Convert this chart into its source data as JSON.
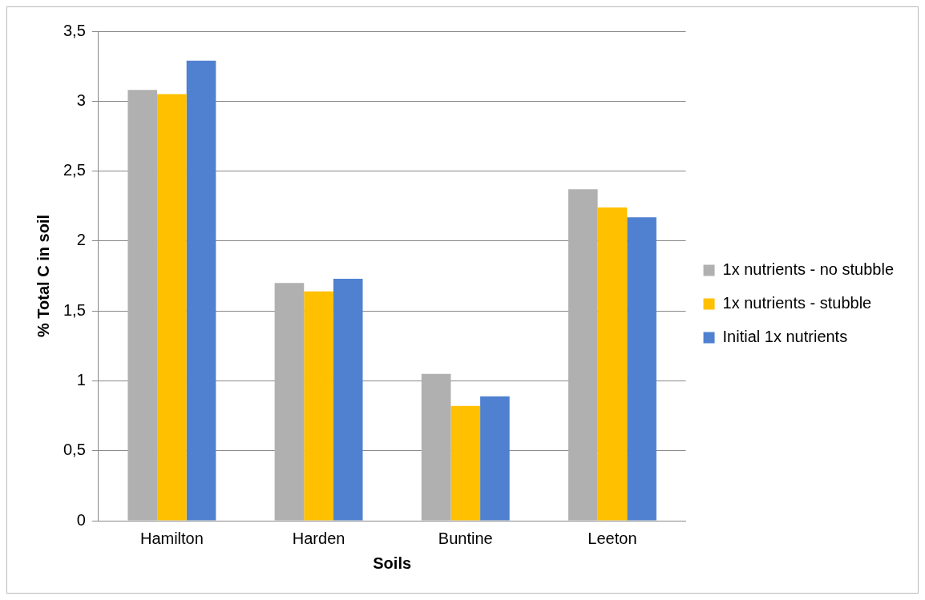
{
  "chart_data": {
    "type": "bar",
    "xlabel": "Soils",
    "ylabel": "% Total C in soil",
    "categories": [
      "Hamilton",
      "Harden",
      "Buntine",
      "Leeton"
    ],
    "series": [
      {
        "name": "1x nutrients - no stubble",
        "color": "#b0b0b0",
        "values": [
          3.08,
          1.7,
          1.05,
          2.37
        ]
      },
      {
        "name": "1x nutrients - stubble",
        "color": "#ffc000",
        "values": [
          3.05,
          1.64,
          0.82,
          2.24
        ]
      },
      {
        "name": "Initial 1x nutrients",
        "color": "#4f81d0",
        "values": [
          3.29,
          1.73,
          0.89,
          2.17
        ]
      }
    ],
    "ylim": [
      0,
      3.5
    ],
    "yticks": [
      0,
      {
        "value": 0.5,
        "label": "0,5"
      },
      1,
      {
        "value": 1.5,
        "label": "1,5"
      },
      2,
      {
        "value": 2.5,
        "label": "2,5"
      },
      3,
      {
        "value": 3.5,
        "label": "3,5"
      }
    ],
    "grid": "y",
    "legend": "right"
  }
}
